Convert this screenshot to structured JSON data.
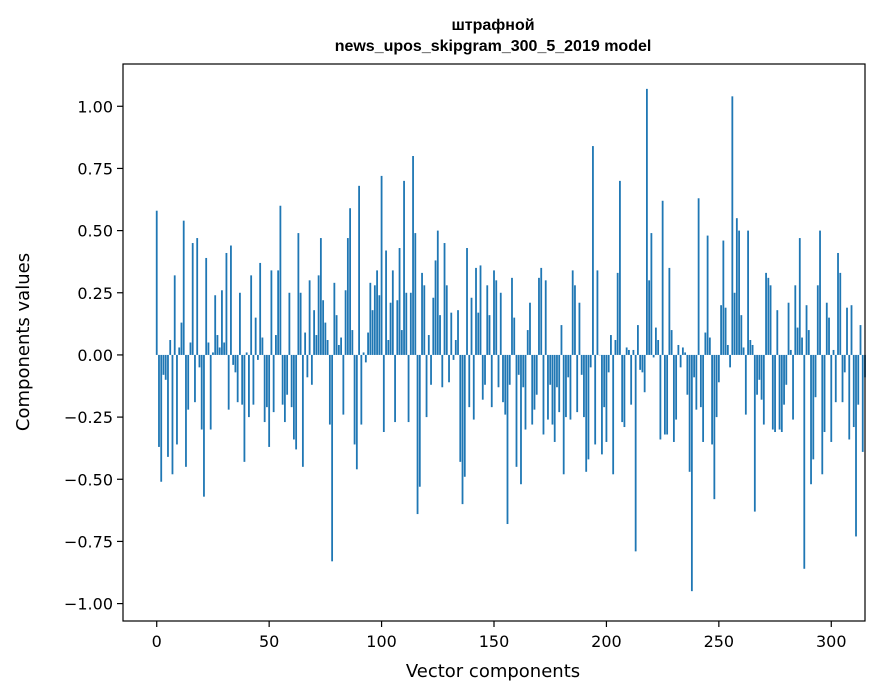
{
  "chart_data": {
    "type": "bar",
    "title": "штрафной",
    "subtitle": "news_upos_skipgram_300_5_2019 model",
    "xlabel": "Vector components",
    "ylabel": "Components values",
    "xlim": [
      -15,
      315
    ],
    "ylim": [
      -1.07,
      1.17
    ],
    "x_ticks": [
      0,
      50,
      100,
      150,
      200,
      250,
      300
    ],
    "x_tick_labels": [
      "0",
      "50",
      "100",
      "150",
      "200",
      "250",
      "300"
    ],
    "y_ticks": [
      -1.0,
      -0.75,
      -0.5,
      -0.25,
      0.0,
      0.25,
      0.5,
      0.75,
      1.0
    ],
    "y_tick_labels": [
      "−1.00",
      "−0.75",
      "−0.50",
      "−0.25",
      "0.00",
      "0.25",
      "0.50",
      "0.75",
      "1.00"
    ],
    "grid": false,
    "bar_color": "#1f77b4",
    "x_start": 0,
    "values": [
      0.58,
      -0.37,
      -0.51,
      -0.08,
      -0.1,
      -0.41,
      0.06,
      -0.48,
      0.32,
      -0.36,
      0.03,
      0.13,
      0.54,
      -0.45,
      -0.22,
      0.05,
      0.45,
      -0.19,
      0.47,
      -0.05,
      -0.3,
      -0.57,
      0.39,
      0.05,
      -0.3,
      0.01,
      0.24,
      0.08,
      0.03,
      0.26,
      0.05,
      0.41,
      -0.22,
      0.44,
      -0.04,
      -0.07,
      -0.19,
      0.25,
      -0.2,
      -0.43,
      0.01,
      -0.25,
      0.32,
      -0.2,
      0.15,
      -0.02,
      0.37,
      0.07,
      -0.27,
      -0.21,
      -0.37,
      0.34,
      -0.23,
      0.08,
      0.34,
      0.6,
      -0.2,
      -0.27,
      -0.16,
      0.25,
      -0.21,
      -0.34,
      -0.38,
      0.49,
      0.25,
      -0.45,
      0.09,
      -0.09,
      0.3,
      -0.12,
      0.18,
      0.08,
      0.32,
      0.47,
      0.22,
      0.13,
      0.06,
      -0.28,
      -0.83,
      0.29,
      0.16,
      0.04,
      0.07,
      -0.24,
      0.26,
      0.47,
      0.59,
      0.1,
      -0.36,
      -0.46,
      0.68,
      -0.28,
      0.01,
      -0.03,
      0.09,
      0.29,
      0.18,
      0.28,
      0.34,
      0.24,
      0.72,
      -0.31,
      0.42,
      0.06,
      0.21,
      0.34,
      -0.27,
      0.22,
      0.43,
      0.1,
      0.7,
      0.25,
      -0.27,
      0.25,
      0.8,
      0.49,
      -0.64,
      -0.53,
      0.33,
      0.28,
      -0.25,
      0.08,
      -0.12,
      0.23,
      0.38,
      0.5,
      0.16,
      -0.13,
      0.45,
      0.28,
      -0.11,
      0.17,
      -0.02,
      0.06,
      0.18,
      -0.43,
      -0.6,
      -0.49,
      0.43,
      -0.21,
      0.23,
      -0.26,
      0.35,
      0.17,
      0.36,
      -0.18,
      -0.12,
      0.28,
      0.16,
      -0.21,
      0.34,
      0.3,
      -0.13,
      0.25,
      -0.19,
      -0.24,
      -0.68,
      -0.12,
      0.31,
      0.15,
      -0.45,
      -0.08,
      -0.52,
      -0.13,
      -0.3,
      0.1,
      0.21,
      -0.28,
      -0.22,
      -0.16,
      0.31,
      0.35,
      -0.32,
      0.3,
      -0.26,
      -0.12,
      -0.28,
      -0.35,
      -0.13,
      -0.23,
      0.12,
      -0.48,
      -0.25,
      -0.09,
      -0.26,
      0.34,
      0.28,
      -0.23,
      0.21,
      -0.08,
      -0.25,
      -0.47,
      -0.42,
      -0.05,
      0.84,
      -0.36,
      0.34,
      0.0,
      -0.4,
      -0.21,
      -0.35,
      -0.07,
      0.08,
      -0.48,
      0.06,
      0.33,
      0.7,
      -0.27,
      -0.29,
      0.03,
      0.02,
      -0.2,
      0.02,
      -0.79,
      0.12,
      -0.06,
      -0.07,
      -0.15,
      1.07,
      0.3,
      0.49,
      -0.01,
      0.11,
      0.06,
      -0.34,
      0.62,
      -0.32,
      -0.32,
      0.35,
      0.1,
      -0.35,
      -0.26,
      0.04,
      -0.05,
      0.03,
      0.01,
      -0.16,
      -0.47,
      -0.95,
      -0.09,
      -0.22,
      0.63,
      -0.21,
      -0.35,
      0.09,
      0.48,
      0.07,
      -0.36,
      -0.58,
      -0.25,
      -0.11,
      0.2,
      0.46,
      0.19,
      0.04,
      -0.05,
      1.04,
      0.25,
      0.55,
      0.5,
      0.16,
      0.03,
      -0.24,
      0.5,
      0.06,
      0.04,
      -0.63,
      -0.16,
      -0.1,
      -0.18,
      -0.28,
      0.33,
      0.31,
      0.28,
      -0.3,
      -0.31,
      0.18,
      -0.3,
      -0.31,
      -0.2,
      -0.12,
      0.21,
      0.02,
      -0.26,
      0.28,
      0.11,
      0.47,
      0.07,
      -0.86,
      0.2,
      0.1,
      -0.52,
      -0.42,
      -0.17,
      0.28,
      0.5,
      -0.48,
      -0.31,
      0.21,
      0.15,
      -0.35,
      0.02,
      -0.19,
      0.41,
      0.33,
      -0.19,
      -0.07,
      0.19,
      -0.34,
      0.2,
      -0.29,
      -0.73,
      -0.2,
      0.12,
      -0.39,
      -0.09
    ]
  }
}
